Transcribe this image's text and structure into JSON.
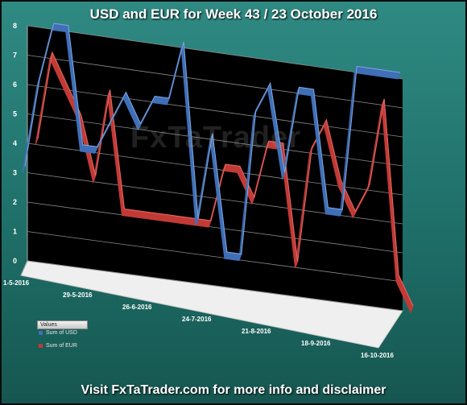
{
  "title": "USD and EUR for Week 43 / 23 October 2016",
  "footer": "Visit FxTaTrader.com for more info and disclaimer",
  "watermark": "FxTaTrader",
  "legend": {
    "title": "Values",
    "items": [
      {
        "label": "Sum of USD",
        "color": "#3f6fb7"
      },
      {
        "label": "Sum of EUR",
        "color": "#c23a36"
      }
    ]
  },
  "chart_data": {
    "type": "line",
    "style": "3d-ribbon",
    "title": "USD and EUR for Week 43 / 23 October 2016",
    "ylim": [
      0,
      8
    ],
    "y_ticks": [
      "0",
      "1",
      "2",
      "3",
      "4",
      "5",
      "6",
      "7",
      "8"
    ],
    "x_tick_labels": [
      "1-5-2016",
      "29-5-2016",
      "26-6-2016",
      "24-7-2016",
      "21-8-2016",
      "18-9-2016",
      "16-10-2016"
    ],
    "series": [
      {
        "name": "Sum of USD",
        "color": "#3f6fb7",
        "values": [
          3,
          6,
          8,
          8,
          4,
          4,
          5,
          6,
          5,
          6,
          6,
          8,
          2,
          5,
          1,
          1,
          6,
          7,
          4,
          7,
          7,
          3,
          3,
          8,
          8,
          8,
          8
        ]
      },
      {
        "name": "Sum of EUR",
        "color": "#c23a36",
        "values": [
          4,
          7,
          6,
          5,
          3,
          6,
          2,
          2,
          2,
          2,
          2,
          2,
          2,
          4,
          4,
          3,
          5,
          5,
          1,
          5,
          6,
          4,
          3,
          4,
          7,
          1,
          0
        ]
      }
    ],
    "grid": true,
    "legend_position": "bottom-left"
  }
}
